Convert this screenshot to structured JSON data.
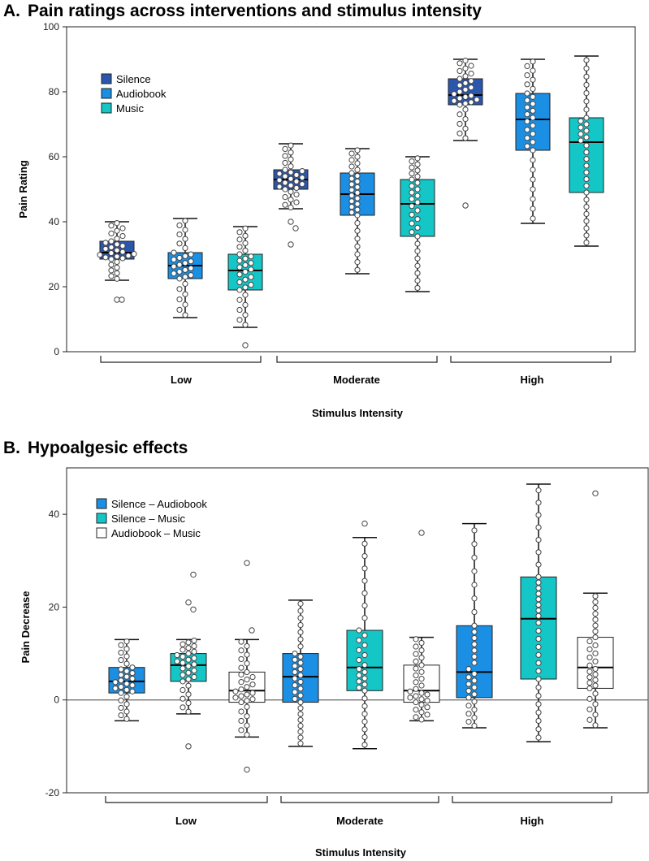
{
  "colors": {
    "silence": "#2a57ad",
    "audiobook": "#1a8fe3",
    "music": "#14c6c6",
    "audiobook_music": "#ffffff",
    "zero_line": "#666666"
  },
  "chart_data": [
    {
      "id": "A",
      "panel_label": "A.",
      "type": "box",
      "title": "Pain ratings across interventions and stimulus intensity",
      "xlabel": "Stimulus Intensity",
      "ylabel": "Pain Rating",
      "ylim": [
        0,
        100
      ],
      "yticks": [
        0,
        20,
        40,
        60,
        80,
        100
      ],
      "legend_position": "top-left",
      "groups": [
        "Low",
        "Moderate",
        "High"
      ],
      "series": [
        {
          "name": "Silence",
          "color_key": "silence",
          "boxes": [
            {
              "min": 16,
              "q1": 28.5,
              "median": 30.5,
              "q3": 34,
              "max": 40,
              "lower_whisker": 22,
              "upper_whisker": 40,
              "outliers": [
                16,
                16
              ]
            },
            {
              "min": 33,
              "q1": 50,
              "median": 53,
              "q3": 56,
              "max": 64,
              "lower_whisker": 44,
              "upper_whisker": 64,
              "outliers": [
                33,
                38,
                40
              ]
            },
            {
              "min": 45,
              "q1": 76,
              "median": 79,
              "q3": 84,
              "max": 90,
              "lower_whisker": 65,
              "upper_whisker": 90,
              "outliers": [
                45
              ]
            }
          ]
        },
        {
          "name": "Audiobook",
          "color_key": "audiobook",
          "boxes": [
            {
              "min": 10.5,
              "q1": 22.5,
              "median": 26.5,
              "q3": 30.5,
              "max": 41,
              "lower_whisker": 10.5,
              "upper_whisker": 41,
              "outliers": []
            },
            {
              "min": 24,
              "q1": 42,
              "median": 48.5,
              "q3": 55,
              "max": 62.5,
              "lower_whisker": 24,
              "upper_whisker": 62.5,
              "outliers": []
            },
            {
              "min": 39.5,
              "q1": 62,
              "median": 71.5,
              "q3": 79.5,
              "max": 90,
              "lower_whisker": 39.5,
              "upper_whisker": 90,
              "outliers": []
            }
          ]
        },
        {
          "name": "Music",
          "color_key": "music",
          "boxes": [
            {
              "min": 2,
              "q1": 19,
              "median": 25,
              "q3": 30,
              "max": 38.5,
              "lower_whisker": 7.5,
              "upper_whisker": 38.5,
              "outliers": [
                2
              ]
            },
            {
              "min": 18.5,
              "q1": 35.5,
              "median": 45.5,
              "q3": 53,
              "max": 60,
              "lower_whisker": 18.5,
              "upper_whisker": 60,
              "outliers": []
            },
            {
              "min": 32.5,
              "q1": 49,
              "median": 64.5,
              "q3": 72,
              "max": 91,
              "lower_whisker": 32.5,
              "upper_whisker": 91,
              "outliers": []
            }
          ]
        }
      ]
    },
    {
      "id": "B",
      "panel_label": "B.",
      "type": "box",
      "title": "Hypoalgesic effects",
      "xlabel": "Stimulus Intensity",
      "ylabel": "Pain Decrease",
      "ylim": [
        -20,
        50
      ],
      "yticks": [
        -20,
        0,
        20,
        40
      ],
      "zero_line": true,
      "legend_position": "top-left",
      "groups": [
        "Low",
        "Moderate",
        "High"
      ],
      "series": [
        {
          "name": "Silence – Audiobook",
          "color_key": "audiobook",
          "boxes": [
            {
              "min": -4.5,
              "q1": 1.5,
              "median": 4,
              "q3": 7,
              "max": 13,
              "lower_whisker": -4.5,
              "upper_whisker": 13,
              "outliers": []
            },
            {
              "min": -10,
              "q1": -0.5,
              "median": 5,
              "q3": 10,
              "max": 21.5,
              "lower_whisker": -10,
              "upper_whisker": 21.5,
              "outliers": []
            },
            {
              "min": -6,
              "q1": 0.5,
              "median": 6,
              "q3": 16,
              "max": 38,
              "lower_whisker": -6,
              "upper_whisker": 38,
              "outliers": []
            }
          ]
        },
        {
          "name": "Silence – Music",
          "color_key": "music",
          "boxes": [
            {
              "min": -10,
              "q1": 4,
              "median": 7.5,
              "q3": 10,
              "max": 27,
              "lower_whisker": -3,
              "upper_whisker": 13,
              "outliers": [
                -10,
                27,
                21,
                19.5
              ]
            },
            {
              "min": -10.5,
              "q1": 2,
              "median": 7,
              "q3": 15,
              "max": 38,
              "lower_whisker": -10.5,
              "upper_whisker": 35,
              "outliers": [
                38
              ]
            },
            {
              "min": -9,
              "q1": 4.5,
              "median": 17.5,
              "q3": 26.5,
              "max": 46.5,
              "lower_whisker": -9,
              "upper_whisker": 46.5,
              "outliers": []
            }
          ]
        },
        {
          "name": "Audiobook – Music",
          "color_key": "audiobook_music",
          "boxes": [
            {
              "min": -15,
              "q1": -0.5,
              "median": 2,
              "q3": 6,
              "max": 29.5,
              "lower_whisker": -8,
              "upper_whisker": 13,
              "outliers": [
                -15,
                15,
                29.5
              ]
            },
            {
              "min": -4.5,
              "q1": -0.5,
              "median": 2,
              "q3": 7.5,
              "max": 36,
              "lower_whisker": -4.5,
              "upper_whisker": 13.5,
              "outliers": [
                36
              ]
            },
            {
              "min": -6,
              "q1": 2.5,
              "median": 7,
              "q3": 13.5,
              "max": 44.5,
              "lower_whisker": -6,
              "upper_whisker": 23,
              "outliers": [
                44.5
              ]
            }
          ]
        }
      ]
    }
  ]
}
